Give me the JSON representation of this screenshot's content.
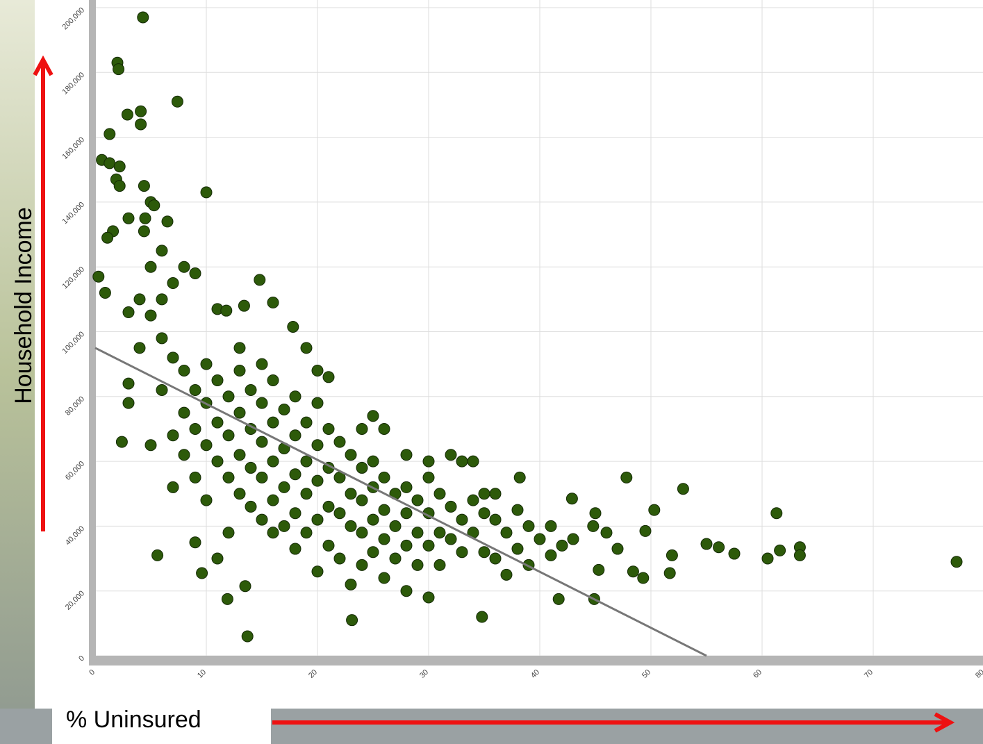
{
  "chart_data": {
    "type": "scatter",
    "ylabel": "Household Income",
    "xlabel": "% Uninsured",
    "color": "#2d5a0a",
    "x": [
      4.3,
      2,
      2.1,
      7.4,
      4.1,
      2.9,
      4.1,
      1.3,
      0.6,
      1.3,
      2.2,
      1.9,
      2.2,
      4.4,
      10,
      5,
      5.3,
      3,
      4.5,
      6.5,
      1.6,
      4.4,
      1.1,
      0.3,
      0.9,
      14.8,
      5.6,
      13.7,
      23.1,
      34.8,
      47.8,
      52.9,
      61.3,
      77.5,
      63.4,
      63.4,
      60.5,
      61.6,
      57.5,
      56.1,
      55,
      51.7,
      51.9,
      50.3,
      49.5,
      48.4,
      49.3,
      45.3,
      44.9,
      41.7,
      45,
      44.8,
      42.9,
      38.2,
      2.4,
      3,
      11.9,
      13.5,
      9.6,
      13.4,
      16,
      11,
      11.8,
      17.8,
      5,
      6,
      7,
      8,
      8,
      9,
      9,
      10,
      10,
      10,
      11,
      11,
      11,
      12,
      12,
      12,
      13,
      13,
      13,
      13,
      14,
      14,
      14,
      14,
      15,
      15,
      15,
      15,
      16,
      16,
      16,
      16,
      16,
      17,
      17,
      17,
      17,
      18,
      18,
      18,
      18,
      18,
      19,
      19,
      19,
      19,
      20,
      20,
      20,
      20,
      20,
      21,
      21,
      21,
      21,
      22,
      22,
      22,
      22,
      23,
      23,
      23,
      23,
      24,
      24,
      24,
      24,
      25,
      25,
      25,
      25,
      26,
      26,
      26,
      26,
      27,
      27,
      27,
      28,
      28,
      28,
      28,
      29,
      29,
      29,
      30,
      30,
      30,
      30,
      31,
      31,
      31,
      32,
      32,
      33,
      33,
      33,
      34,
      34,
      35,
      35,
      36,
      36,
      37,
      37,
      38,
      38,
      39,
      39,
      40,
      41,
      41,
      42,
      43,
      46,
      47,
      12,
      10,
      9,
      8,
      7,
      6,
      7,
      8,
      9,
      6,
      5,
      4,
      3,
      4,
      6,
      3,
      5,
      7,
      9,
      11,
      13,
      15,
      19,
      20,
      21,
      25,
      26,
      24,
      28,
      30,
      32,
      34,
      35,
      36
    ],
    "values": [
      197000,
      183000,
      181000,
      171000,
      168000,
      167000,
      164000,
      161000,
      153000,
      152000,
      151000,
      147000,
      145000,
      145000,
      143000,
      140000,
      139000,
      135000,
      135000,
      134000,
      131000,
      131000,
      129000,
      117000,
      112000,
      116000,
      31000,
      6000,
      11000,
      12000,
      55000,
      51500,
      44000,
      29000,
      33500,
      31000,
      30000,
      32500,
      31500,
      33500,
      34500,
      25500,
      31000,
      45000,
      38500,
      26000,
      24000,
      26500,
      17500,
      17500,
      44000,
      40000,
      48500,
      55000,
      66000,
      84000,
      17500,
      21500,
      25500,
      108000,
      109000,
      107000,
      106500,
      101500,
      105000,
      98000,
      92000,
      88000,
      75000,
      82000,
      70000,
      90000,
      78000,
      65000,
      85000,
      72000,
      60000,
      80000,
      68000,
      55000,
      88000,
      75000,
      62000,
      50000,
      82000,
      70000,
      58000,
      46000,
      78000,
      66000,
      55000,
      42000,
      85000,
      72000,
      60000,
      48000,
      38000,
      76000,
      64000,
      52000,
      40000,
      80000,
      68000,
      56000,
      44000,
      33000,
      72000,
      60000,
      50000,
      38000,
      78000,
      65000,
      54000,
      42000,
      26000,
      70000,
      58000,
      46000,
      34000,
      66000,
      55000,
      44000,
      30000,
      62000,
      50000,
      40000,
      22000,
      58000,
      48000,
      38000,
      28000,
      60000,
      52000,
      42000,
      32000,
      55000,
      45000,
      36000,
      24000,
      50000,
      40000,
      30000,
      52000,
      44000,
      34000,
      20000,
      48000,
      38000,
      28000,
      55000,
      44000,
      34000,
      18000,
      50000,
      38000,
      28000,
      46000,
      36000,
      60000,
      42000,
      32000,
      48000,
      38000,
      44000,
      32000,
      42000,
      30000,
      38000,
      25000,
      45000,
      33000,
      40000,
      28000,
      36000,
      40000,
      31000,
      34000,
      36000,
      38000,
      33000,
      38000,
      48000,
      55000,
      62000,
      68000,
      110000,
      115000,
      120000,
      118000,
      125000,
      120000,
      110000,
      106000,
      95000,
      82000,
      78000,
      65000,
      52000,
      35000,
      30000,
      95000,
      90000,
      95000,
      88000,
      86000,
      74000,
      70000,
      70000,
      62000,
      60000,
      62000,
      60000,
      50000,
      50000
    ],
    "trendline": {
      "x": [
        0,
        55
      ],
      "values": [
        95000,
        0
      ],
      "color": "#777777"
    },
    "xlim": [
      0,
      80
    ],
    "xticks": [
      0,
      10,
      20,
      30,
      40,
      50,
      60,
      70,
      80
    ],
    "ylim": [
      0,
      200000
    ],
    "yticks": [
      0,
      {
        "value": 20000,
        "label": "20,000"
      },
      {
        "value": 40000,
        "label": "40,000"
      },
      {
        "value": 60000,
        "label": "60,000"
      },
      {
        "value": 80000,
        "label": "80,000"
      },
      {
        "value": 100000,
        "label": "100,000"
      },
      {
        "value": 120000,
        "label": "120,000"
      },
      {
        "value": 140000,
        "label": "140,000"
      },
      {
        "value": 160000,
        "label": "160,000"
      },
      {
        "value": 180000,
        "label": "180,000"
      },
      {
        "value": 200000,
        "label": "200,000"
      }
    ],
    "grid": true
  }
}
